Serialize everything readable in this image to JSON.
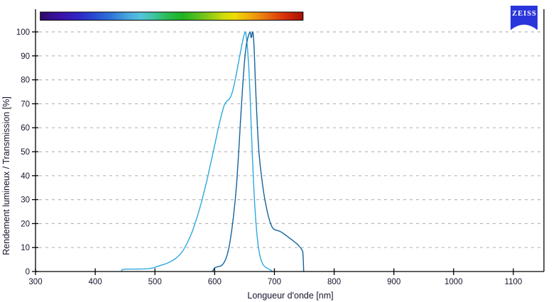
{
  "page": {
    "background": "#ffffff"
  },
  "logo": {
    "text": "ZEISS",
    "bg_color": "#2A35DC",
    "text_color": "#ffffff"
  },
  "style": {
    "axis_color": "#000000",
    "grid_color": "#b8b8b8",
    "tick_label_color": "#15152e"
  },
  "chart_data": {
    "type": "line",
    "title": "",
    "xlabel": "Longueur d'onde [nm]",
    "ylabel": "Rendement lumineux / Transmission [%]",
    "xlim": [
      300,
      1155
    ],
    "ylim": [
      0,
      100
    ],
    "x_ticks": [
      300,
      400,
      500,
      600,
      700,
      800,
      900,
      1000,
      1100
    ],
    "y_ticks": [
      0,
      10,
      20,
      30,
      40,
      50,
      60,
      70,
      80,
      90,
      100
    ],
    "grid": "horizontal dashed light-gray lines every 10%",
    "legend": "none",
    "spectrum_bar": {
      "description": "visible light spectrum gradient bar above plot",
      "wavelength_range_nm": [
        308,
        748
      ],
      "gradient_stops": [
        {
          "pos": 0.0,
          "color": "#2F0C69"
        },
        {
          "pos": 0.07,
          "color": "#3A11A2"
        },
        {
          "pos": 0.14,
          "color": "#3023C4"
        },
        {
          "pos": 0.2,
          "color": "#2948D2"
        },
        {
          "pos": 0.27,
          "color": "#2F74D8"
        },
        {
          "pos": 0.33,
          "color": "#46A4DC"
        },
        {
          "pos": 0.38,
          "color": "#55C3DC"
        },
        {
          "pos": 0.43,
          "color": "#3EC4A6"
        },
        {
          "pos": 0.48,
          "color": "#2CBC55"
        },
        {
          "pos": 0.54,
          "color": "#1FB322"
        },
        {
          "pos": 0.6,
          "color": "#5ABE1D"
        },
        {
          "pos": 0.65,
          "color": "#95CC14"
        },
        {
          "pos": 0.7,
          "color": "#D1DC0A"
        },
        {
          "pos": 0.74,
          "color": "#EDDC05"
        },
        {
          "pos": 0.78,
          "color": "#F0B90A"
        },
        {
          "pos": 0.83,
          "color": "#EC8D0E"
        },
        {
          "pos": 0.88,
          "color": "#E55D0D"
        },
        {
          "pos": 0.93,
          "color": "#D93108"
        },
        {
          "pos": 1.0,
          "color": "#A80F06"
        }
      ]
    },
    "series": [
      {
        "name": "light-blue-curve",
        "color": "#2BA8E0",
        "peak_nm": 651,
        "points": [
          [
            444,
            0
          ],
          [
            445,
            0.8
          ],
          [
            452,
            1
          ],
          [
            462,
            1
          ],
          [
            472,
            1
          ],
          [
            482,
            1.1
          ],
          [
            490,
            1.2
          ],
          [
            497,
            1.5
          ],
          [
            501,
            1.9
          ],
          [
            505,
            2.2
          ],
          [
            510,
            2.6
          ],
          [
            515,
            3
          ],
          [
            520,
            3.4
          ],
          [
            525,
            4
          ],
          [
            530,
            4.7
          ],
          [
            535,
            5.5
          ],
          [
            539,
            6.4
          ],
          [
            543,
            7.4
          ],
          [
            547,
            8.8
          ],
          [
            551,
            10.4
          ],
          [
            555,
            12.4
          ],
          [
            559,
            14.6
          ],
          [
            563,
            17
          ],
          [
            567,
            20
          ],
          [
            571,
            23
          ],
          [
            575,
            26.4
          ],
          [
            579,
            30
          ],
          [
            583,
            34
          ],
          [
            587,
            38
          ],
          [
            591,
            42.6
          ],
          [
            595,
            47
          ],
          [
            599,
            51.6
          ],
          [
            602,
            55
          ],
          [
            605,
            58.6
          ],
          [
            608,
            62
          ],
          [
            611,
            65
          ],
          [
            614,
            67.8
          ],
          [
            616,
            69.4
          ],
          [
            618,
            70.4
          ],
          [
            621,
            71.2
          ],
          [
            624,
            71.8
          ],
          [
            627,
            73
          ],
          [
            630,
            75.2
          ],
          [
            633,
            78.4
          ],
          [
            636,
            82
          ],
          [
            639,
            86
          ],
          [
            642,
            90
          ],
          [
            645,
            94
          ],
          [
            647,
            96.4
          ],
          [
            649,
            98.6
          ],
          [
            651,
            100
          ],
          [
            652,
            99.6
          ],
          [
            653,
            98
          ],
          [
            655,
            93
          ],
          [
            657,
            85.5
          ],
          [
            659,
            75
          ],
          [
            661,
            62
          ],
          [
            663,
            49
          ],
          [
            665,
            37.5
          ],
          [
            667,
            28
          ],
          [
            669,
            20.5
          ],
          [
            671,
            14.8
          ],
          [
            673,
            10.5
          ],
          [
            675,
            7.5
          ],
          [
            677,
            5.4
          ],
          [
            679,
            3.9
          ],
          [
            681,
            2.8
          ],
          [
            684,
            2
          ],
          [
            687,
            1.5
          ],
          [
            690,
            1.1
          ],
          [
            693,
            0.7
          ],
          [
            695,
            0.4
          ],
          [
            697,
            0
          ]
        ]
      },
      {
        "name": "dark-blue-curve",
        "color": "#14639C",
        "peak_nm": 661,
        "points": [
          [
            596,
            0
          ],
          [
            598,
            0.8
          ],
          [
            600,
            1.6
          ],
          [
            603,
            1.9
          ],
          [
            607,
            2.1
          ],
          [
            611,
            2.4
          ],
          [
            614,
            3.1
          ],
          [
            617,
            4.3
          ],
          [
            619,
            5.5
          ],
          [
            621,
            7
          ],
          [
            623,
            9
          ],
          [
            625,
            11.5
          ],
          [
            627,
            14.5
          ],
          [
            629,
            18
          ],
          [
            631,
            22
          ],
          [
            633,
            26.6
          ],
          [
            635,
            31.6
          ],
          [
            637,
            37.6
          ],
          [
            639,
            45
          ],
          [
            641,
            53
          ],
          [
            643,
            62
          ],
          [
            645,
            70
          ],
          [
            647,
            78
          ],
          [
            649,
            85
          ],
          [
            651,
            90.6
          ],
          [
            653,
            94.6
          ],
          [
            655,
            97
          ],
          [
            657,
            98.8
          ],
          [
            658,
            99.4
          ],
          [
            659,
            100
          ],
          [
            660,
            99.2
          ],
          [
            661,
            97.6
          ],
          [
            662,
            98
          ],
          [
            663,
            99.8
          ],
          [
            664,
            100
          ],
          [
            665,
            97.6
          ],
          [
            666,
            93.2
          ],
          [
            667,
            87
          ],
          [
            668,
            80
          ],
          [
            670,
            68.5
          ],
          [
            672,
            58
          ],
          [
            674,
            50
          ],
          [
            676,
            44.6
          ],
          [
            678,
            40.6
          ],
          [
            680,
            36.6
          ],
          [
            682,
            33
          ],
          [
            684,
            30
          ],
          [
            686,
            27.4
          ],
          [
            688,
            25
          ],
          [
            690,
            23
          ],
          [
            692,
            21.2
          ],
          [
            694,
            19.8
          ],
          [
            696,
            18.6
          ],
          [
            698,
            17.9
          ],
          [
            701,
            17.4
          ],
          [
            705,
            17.1
          ],
          [
            709,
            16.8
          ],
          [
            713,
            16.2
          ],
          [
            717,
            15.5
          ],
          [
            721,
            14.8
          ],
          [
            725,
            14
          ],
          [
            729,
            13.3
          ],
          [
            733,
            12.5
          ],
          [
            737,
            11.7
          ],
          [
            740,
            11
          ],
          [
            742,
            10.4
          ],
          [
            744,
            9.8
          ],
          [
            746,
            9.1
          ],
          [
            747.5,
            8.3
          ],
          [
            748.3,
            5
          ],
          [
            749,
            0
          ]
        ]
      }
    ]
  }
}
